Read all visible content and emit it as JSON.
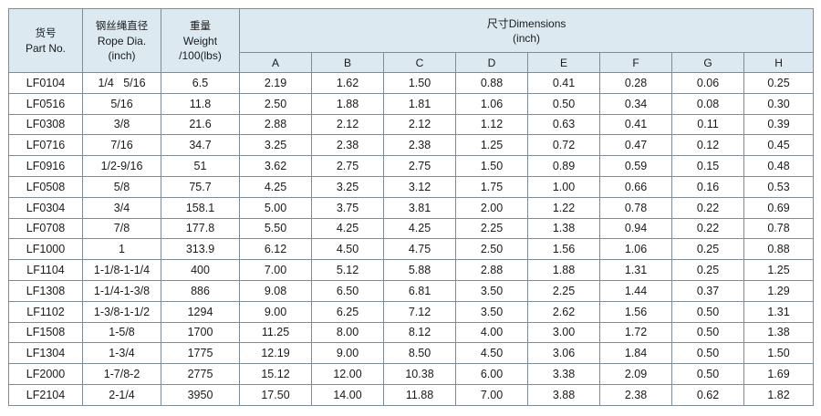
{
  "table": {
    "headers": {
      "part_no": {
        "cn": "货号",
        "en": "Part No."
      },
      "rope_dia": {
        "cn": "钢丝绳直径",
        "en": "Rope Dia.",
        "unit": "(inch)"
      },
      "weight": {
        "cn": "重量",
        "en": "Weight",
        "unit": "/100(lbs)"
      },
      "dimensions": {
        "title": "尺寸Dimensions",
        "unit": "(inch)"
      },
      "dim_cols": [
        "A",
        "B",
        "C",
        "D",
        "E",
        "F",
        "G",
        "H"
      ]
    },
    "rows": [
      [
        "LF0104",
        "1/4   5/16",
        "6.5",
        "2.19",
        "1.62",
        "1.50",
        "0.88",
        "0.41",
        "0.28",
        "0.06",
        "0.25"
      ],
      [
        "LF0516",
        "5/16",
        "11.8",
        "2.50",
        "1.88",
        "1.81",
        "1.06",
        "0.50",
        "0.34",
        "0.08",
        "0.30"
      ],
      [
        "LF0308",
        "3/8",
        "21.6",
        "2.88",
        "2.12",
        "2.12",
        "1.12",
        "0.63",
        "0.41",
        "0.11",
        "0.39"
      ],
      [
        "LF0716",
        "7/16",
        "34.7",
        "3.25",
        "2.38",
        "2.38",
        "1.25",
        "0.72",
        "0.47",
        "0.12",
        "0.45"
      ],
      [
        "LF0916",
        "1/2-9/16",
        "51",
        "3.62",
        "2.75",
        "2.75",
        "1.50",
        "0.89",
        "0.59",
        "0.15",
        "0.48"
      ],
      [
        "LF0508",
        "5/8",
        "75.7",
        "4.25",
        "3.25",
        "3.12",
        "1.75",
        "1.00",
        "0.66",
        "0.16",
        "0.53"
      ],
      [
        "LF0304",
        "3/4",
        "158.1",
        "5.00",
        "3.75",
        "3.81",
        "2.00",
        "1.22",
        "0.78",
        "0.22",
        "0.69"
      ],
      [
        "LF0708",
        "7/8",
        "177.8",
        "5.50",
        "4.25",
        "4.25",
        "2.25",
        "1.38",
        "0.94",
        "0.22",
        "0.78"
      ],
      [
        "LF1000",
        "1",
        "313.9",
        "6.12",
        "4.50",
        "4.75",
        "2.50",
        "1.56",
        "1.06",
        "0.25",
        "0.88"
      ],
      [
        "LF1104",
        "1-1/8-1-1/4",
        "400",
        "7.00",
        "5.12",
        "5.88",
        "2.88",
        "1.88",
        "1.31",
        "0.25",
        "1.25"
      ],
      [
        "LF1308",
        "1-1/4-1-3/8",
        "886",
        "9.08",
        "6.50",
        "6.81",
        "3.50",
        "2.25",
        "1.44",
        "0.37",
        "1.29"
      ],
      [
        "LF1102",
        "1-3/8-1-1/2",
        "1294",
        "9.00",
        "6.25",
        "7.12",
        "3.50",
        "2.62",
        "1.56",
        "0.50",
        "1.31"
      ],
      [
        "LF1508",
        "1-5/8",
        "1700",
        "11.25",
        "8.00",
        "8.12",
        "4.00",
        "3.00",
        "1.72",
        "0.50",
        "1.38"
      ],
      [
        "LF1304",
        "1-3/4",
        "1775",
        "12.19",
        "9.00",
        "8.50",
        "4.50",
        "3.06",
        "1.84",
        "0.50",
        "1.50"
      ],
      [
        "LF2000",
        "1-7/8-2",
        "2775",
        "15.12",
        "12.00",
        "10.38",
        "6.00",
        "3.38",
        "2.09",
        "0.50",
        "1.69"
      ],
      [
        "LF2104",
        "2-1/4",
        "3950",
        "17.50",
        "14.00",
        "11.88",
        "7.00",
        "3.88",
        "2.38",
        "0.62",
        "1.82"
      ]
    ]
  }
}
